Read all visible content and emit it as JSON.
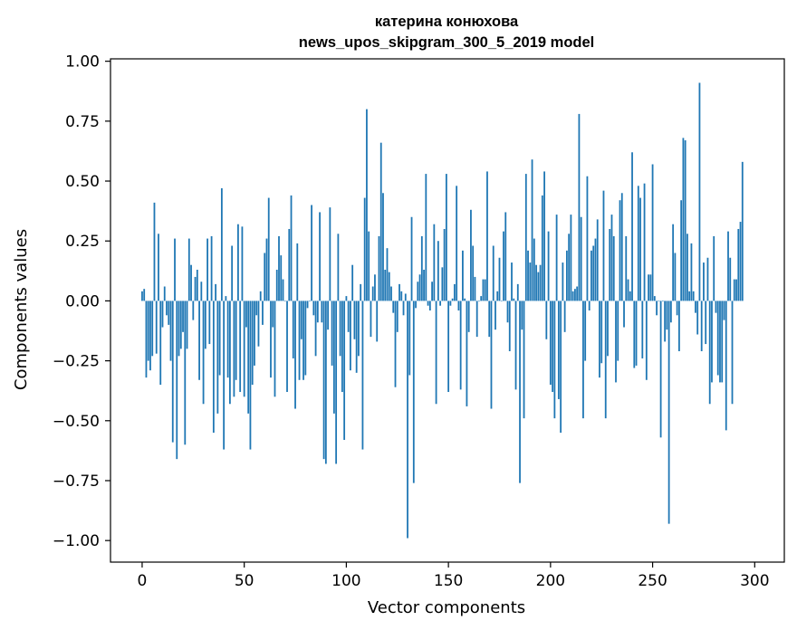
{
  "chart_data": {
    "type": "bar",
    "title_line1": "катерина конюхова",
    "title_line2": "news_upos_skipgram_300_5_2019 model",
    "xlabel": "Vector components",
    "ylabel": "Components values",
    "xlim": [
      -15.5,
      314.5
    ],
    "ylim": [
      -1.09,
      1.01
    ],
    "x_ticks": [
      0,
      50,
      100,
      150,
      200,
      250,
      300
    ],
    "x_tick_labels": [
      "0",
      "50",
      "100",
      "150",
      "200",
      "250",
      "300"
    ],
    "y_ticks": [
      1.0,
      0.75,
      0.5,
      0.25,
      0.0,
      -0.25,
      -0.5,
      -0.75,
      -1.0
    ],
    "y_tick_labels": [
      "1.00",
      "0.75",
      "0.50",
      "0.25",
      "0.00",
      "−0.25",
      "−0.50",
      "−0.75",
      "−1.00"
    ],
    "bar_color": "#1f77b4",
    "grid": false,
    "legend": "none",
    "values": [
      0.04,
      0.05,
      -0.32,
      -0.25,
      -0.29,
      -0.23,
      0.41,
      -0.22,
      0.28,
      -0.35,
      -0.11,
      0.06,
      -0.06,
      -0.1,
      -0.25,
      -0.59,
      0.26,
      -0.66,
      -0.23,
      -0.2,
      -0.13,
      -0.6,
      -0.2,
      0.26,
      0.15,
      -0.08,
      0.1,
      0.13,
      -0.33,
      0.08,
      -0.43,
      -0.2,
      0.26,
      -0.18,
      0.27,
      -0.55,
      0.07,
      -0.47,
      -0.31,
      0.47,
      -0.62,
      0.02,
      -0.32,
      -0.43,
      0.23,
      -0.4,
      -0.33,
      0.32,
      -0.38,
      0.31,
      -0.4,
      -0.11,
      -0.47,
      -0.62,
      -0.35,
      -0.27,
      -0.06,
      -0.19,
      0.04,
      -0.1,
      0.2,
      0.26,
      0.43,
      -0.32,
      -0.11,
      -0.4,
      0.13,
      0.27,
      0.19,
      0.09,
      0.0,
      -0.38,
      0.3,
      0.44,
      -0.24,
      -0.45,
      0.24,
      -0.33,
      -0.16,
      -0.33,
      -0.31,
      -0.03,
      0.0,
      0.4,
      -0.06,
      -0.23,
      -0.09,
      0.37,
      -0.09,
      -0.66,
      -0.68,
      -0.12,
      0.39,
      -0.27,
      -0.47,
      -0.68,
      0.28,
      -0.23,
      -0.38,
      -0.58,
      0.02,
      -0.13,
      -0.29,
      0.15,
      -0.16,
      -0.3,
      -0.23,
      0.07,
      -0.62,
      0.43,
      0.8,
      0.29,
      -0.15,
      0.06,
      0.11,
      -0.17,
      0.27,
      0.66,
      0.45,
      0.13,
      0.22,
      0.12,
      0.06,
      -0.05,
      -0.36,
      -0.13,
      0.07,
      0.04,
      -0.06,
      0.03,
      -0.99,
      -0.31,
      0.35,
      -0.76,
      -0.03,
      0.08,
      0.11,
      0.27,
      0.13,
      0.53,
      -0.02,
      -0.04,
      0.08,
      0.32,
      -0.43,
      0.25,
      -0.02,
      0.14,
      0.3,
      0.53,
      -0.38,
      -0.02,
      0.01,
      0.07,
      0.48,
      -0.04,
      -0.37,
      0.21,
      0.01,
      -0.44,
      -0.13,
      0.38,
      0.23,
      0.1,
      -0.15,
      0.0,
      0.02,
      0.09,
      0.09,
      0.54,
      -0.15,
      -0.45,
      0.23,
      -0.12,
      0.04,
      0.18,
      0.0,
      0.29,
      0.37,
      -0.09,
      -0.21,
      0.16,
      0.01,
      -0.37,
      0.07,
      -0.76,
      -0.12,
      -0.49,
      0.53,
      0.21,
      0.16,
      0.59,
      0.26,
      0.15,
      0.12,
      0.15,
      0.44,
      0.54,
      -0.16,
      0.29,
      -0.35,
      -0.38,
      -0.49,
      0.36,
      -0.41,
      -0.55,
      0.16,
      -0.13,
      0.21,
      0.28,
      0.36,
      0.04,
      0.05,
      0.06,
      0.78,
      0.35,
      -0.49,
      -0.25,
      0.52,
      -0.04,
      0.21,
      0.23,
      0.26,
      0.34,
      -0.32,
      -0.26,
      0.46,
      -0.49,
      -0.23,
      0.3,
      0.36,
      0.27,
      -0.34,
      -0.25,
      0.42,
      0.45,
      -0.11,
      0.27,
      0.09,
      0.04,
      0.62,
      -0.28,
      -0.27,
      0.48,
      0.43,
      -0.24,
      0.49,
      -0.33,
      0.11,
      0.11,
      0.57,
      0.02,
      -0.06,
      0.0,
      -0.57,
      0.0,
      -0.17,
      -0.12,
      -0.93,
      -0.09,
      0.32,
      0.2,
      -0.06,
      -0.21,
      0.42,
      0.68,
      0.67,
      0.28,
      0.04,
      0.24,
      0.04,
      -0.05,
      -0.14,
      0.91,
      -0.21,
      0.16,
      -0.18,
      0.18,
      -0.43,
      -0.34,
      0.27,
      -0.05,
      -0.31,
      -0.34,
      -0.34,
      -0.08,
      -0.54,
      0.29,
      0.18,
      -0.43,
      0.09,
      0.09,
      0.3,
      0.33,
      0.58
    ]
  }
}
